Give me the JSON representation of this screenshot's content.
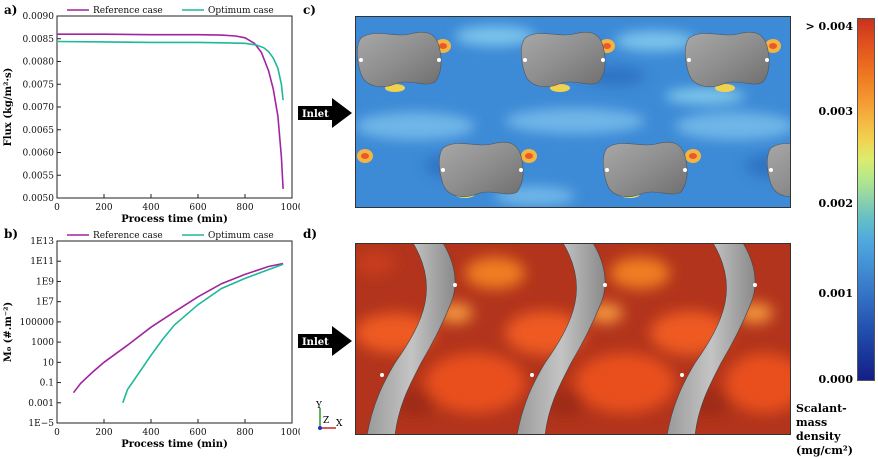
{
  "panel_labels": {
    "a": "a)",
    "b": "b)",
    "c": "c)",
    "d": "d)"
  },
  "inlet_label": "Inlet",
  "axis_triad": {
    "y": "Y",
    "z": "Z",
    "x": "X"
  },
  "colorbar": {
    "ticks": [
      "> 0.004",
      "0.003",
      "0.002",
      "0.001",
      "0.000"
    ],
    "title_lines": [
      "Scalant-mass",
      "density",
      "(mg/cm²)"
    ],
    "colors": [
      "#c8321e",
      "#dc4b1e",
      "#e8641e",
      "#f07d23",
      "#f59632",
      "#f5b441",
      "#f0d250",
      "#dcec6e",
      "#b4e68c",
      "#8cd2aa",
      "#64bec8",
      "#50aadc",
      "#4696d7",
      "#3c82cd",
      "#326ec3",
      "#285ab4",
      "#1e46a5",
      "#193296",
      "#141e87"
    ]
  },
  "chart_data": [
    {
      "type": "line",
      "panel": "a)",
      "xlabel": "Process time (min)",
      "ylabel": "Flux (kg/m²·s)",
      "xlim": [
        0,
        1000
      ],
      "ylim": [
        0.005,
        0.009
      ],
      "xticks": [
        "0",
        "200",
        "400",
        "600",
        "800",
        "1000"
      ],
      "yticks": [
        "0.0050",
        "0.0055",
        "0.0060",
        "0.0065",
        "0.0070",
        "0.0075",
        "0.0080",
        "0.0085",
        "0.0090"
      ],
      "legend_position": "top",
      "series": [
        {
          "name": "Reference case",
          "color": "#a0259f",
          "x": [
            0,
            200,
            400,
            600,
            700,
            760,
            800,
            840,
            870,
            900,
            920,
            940,
            955,
            962
          ],
          "y": [
            0.0086,
            0.0086,
            0.00859,
            0.00859,
            0.00858,
            0.00856,
            0.00852,
            0.0084,
            0.0082,
            0.0078,
            0.0074,
            0.0068,
            0.0059,
            0.0052
          ]
        },
        {
          "name": "Optimum case",
          "color": "#1fb898",
          "x": [
            0,
            200,
            400,
            600,
            700,
            800,
            850,
            880,
            900,
            920,
            940,
            955,
            962
          ],
          "y": [
            0.00844,
            0.00843,
            0.00842,
            0.00842,
            0.00841,
            0.0084,
            0.00836,
            0.0083,
            0.00822,
            0.00808,
            0.00785,
            0.0075,
            0.00715
          ]
        }
      ]
    },
    {
      "type": "line",
      "panel": "b)",
      "xlabel": "Process time (min)",
      "ylabel": "M₀ (#.m⁻²)",
      "yscale": "log",
      "xlim": [
        0,
        1000
      ],
      "ylim": [
        1e-05,
        10000000000000.0
      ],
      "xticks": [
        "0",
        "200",
        "400",
        "600",
        "800",
        "1000"
      ],
      "yticks": [
        "1E−5",
        "0.001",
        "0.1",
        "10",
        "1000",
        "100000",
        "1E7",
        "1E9",
        "1E11",
        "1E13"
      ],
      "legend_position": "top",
      "series": [
        {
          "name": "Reference case",
          "color": "#a0259f",
          "x": [
            70,
            100,
            150,
            200,
            300,
            400,
            500,
            600,
            700,
            800,
            900,
            962
          ],
          "y": [
            0.01,
            0.08,
            1.0,
            10,
            500,
            30000,
            1000000,
            30000000,
            600000000,
            5000000000,
            30000000000,
            60000000000
          ]
        },
        {
          "name": "Optimum case",
          "color": "#1fb898",
          "x": [
            280,
            300,
            350,
            400,
            450,
            500,
            600,
            700,
            800,
            900,
            962
          ],
          "y": [
            0.001,
            0.02,
            1.0,
            50,
            2000,
            50000,
            5000000,
            200000000,
            2000000000,
            15000000000,
            50000000000
          ]
        }
      ]
    }
  ]
}
